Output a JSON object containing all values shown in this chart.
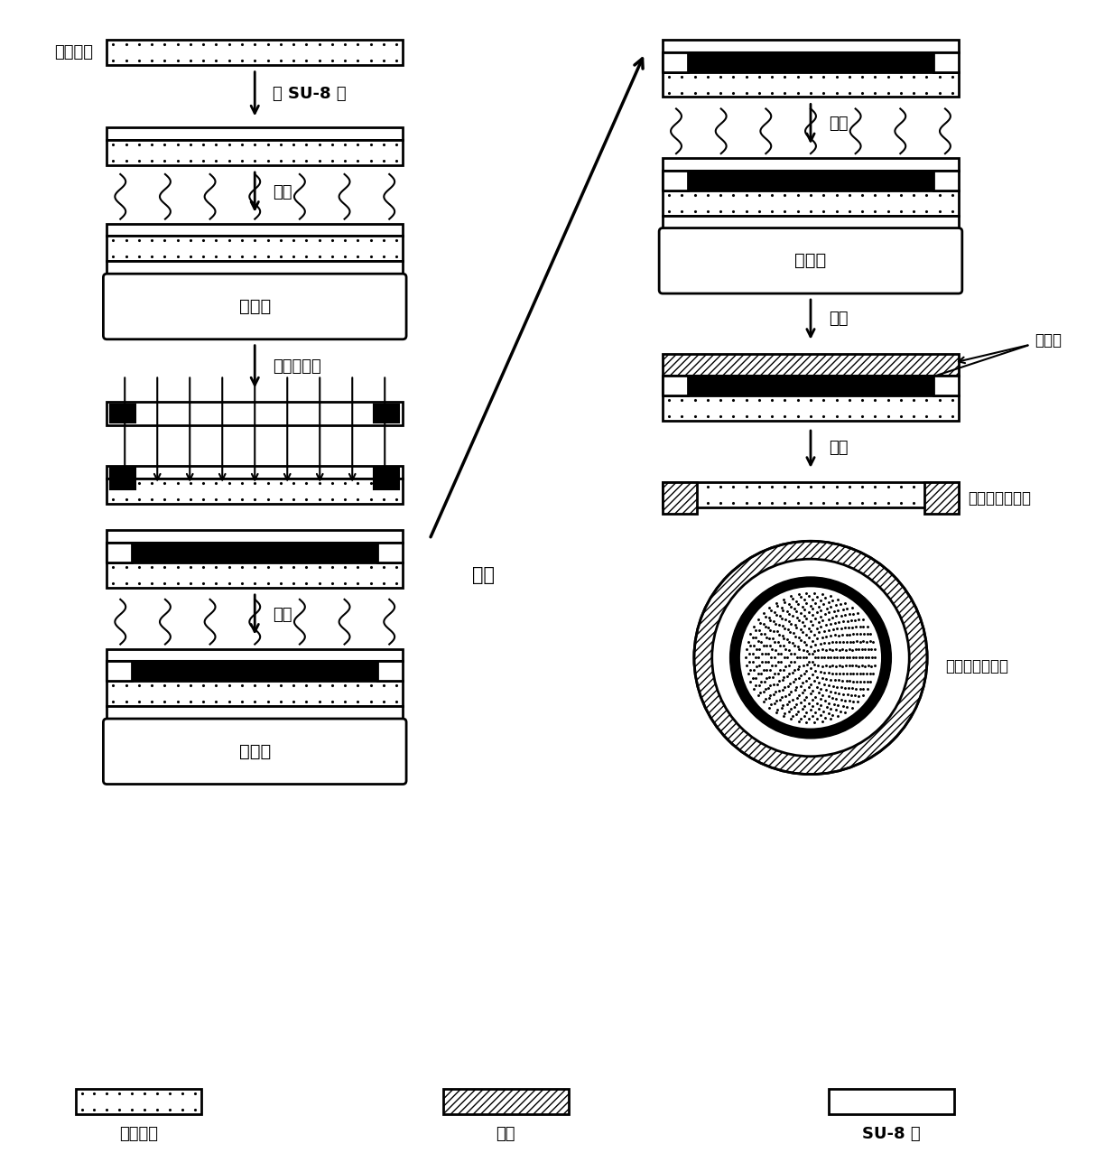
{
  "bg_color": "#ffffff",
  "labels": {
    "step1_top": "支撑玻璃",
    "arrow1": "涂 SU-8 胶",
    "arrow2": "前烘",
    "arrow3": "对准和曝光",
    "arrow_mid": "显影",
    "arrow4": "后烘",
    "arrow_r1": "硬烘",
    "arrow_r2": "镀膜",
    "arrow_r3": "剥离",
    "heating": "加热板",
    "legend1": "支撑玻璃",
    "legend2": "金膜",
    "legend3": "SU-8 胶",
    "right_label1": "金薄膜",
    "right_label2": "电极集成截面图",
    "right_label3": "电极集成俯视图"
  }
}
